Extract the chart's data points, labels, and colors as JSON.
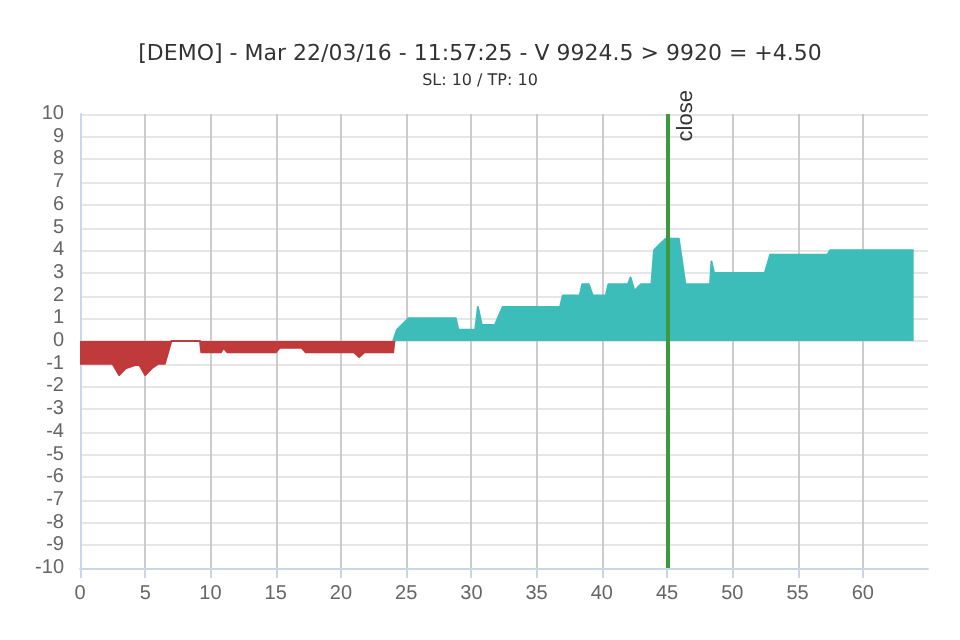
{
  "chart_data": {
    "type": "area",
    "title": "[DEMO] - Mar 22/03/16 - 11:57:25 - V 9924.5 > 9920 = +4.50",
    "subtitle": "SL: 10 / TP: 10",
    "series": [
      {
        "color": "#c0393b",
        "x": [
          0,
          2.5,
          3,
          3.5,
          4.5,
          5,
          5.5,
          6,
          6.5,
          7,
          9.2,
          9.3,
          10.8,
          11,
          11.3,
          15,
          15.3,
          17,
          17.3,
          21,
          21.4,
          21.8,
          24,
          24.1
        ],
        "values": [
          -1,
          -1,
          -1.5,
          -1.2,
          -1,
          -1.5,
          -1.2,
          -1,
          -1,
          0,
          0,
          -0.5,
          -0.5,
          -0.3,
          -0.5,
          -0.5,
          -0.3,
          -0.3,
          -0.5,
          -0.5,
          -0.7,
          -0.5,
          -0.5,
          0
        ]
      },
      {
        "color": "#3dbdb9",
        "x": [
          24,
          24.3,
          25.2,
          28.8,
          29,
          30.3,
          30.5,
          30.8,
          31.8,
          32.4,
          36.8,
          37,
          38.3,
          38.5,
          39,
          39.3,
          40.3,
          40.5,
          42,
          42.2,
          42.5,
          43,
          43.8,
          44,
          44.5,
          44.9,
          45.9,
          46.4,
          48.3,
          48.4,
          48.6,
          52.5,
          52.9,
          57.3,
          57.5,
          63.9
        ],
        "values": [
          0,
          0.5,
          1,
          1,
          0.5,
          0.5,
          1.5,
          0.7,
          0.7,
          1.5,
          1.5,
          2,
          2,
          2.5,
          2.5,
          2,
          2,
          2.5,
          2.5,
          2.8,
          2.2,
          2.5,
          2.5,
          4,
          4.3,
          4.5,
          4.5,
          2.5,
          2.5,
          3.5,
          3,
          3,
          3.8,
          3.8,
          4,
          4
        ]
      }
    ],
    "xlim": [
      0,
      65
    ],
    "xticks": [
      0,
      5,
      10,
      15,
      20,
      25,
      30,
      35,
      40,
      45,
      50,
      55,
      60
    ],
    "ylim": [
      -10,
      10
    ],
    "yticks": [
      -10,
      -9,
      -8,
      -7,
      -6,
      -5,
      -4,
      -3,
      -2,
      -1,
      0,
      1,
      2,
      3,
      4,
      5,
      6,
      7,
      8,
      9,
      10
    ],
    "ref_lines": [
      {
        "axis": "x",
        "value": 45,
        "label": "close",
        "color": "#3c9a3c"
      }
    ],
    "grid": true,
    "marker": "none"
  }
}
